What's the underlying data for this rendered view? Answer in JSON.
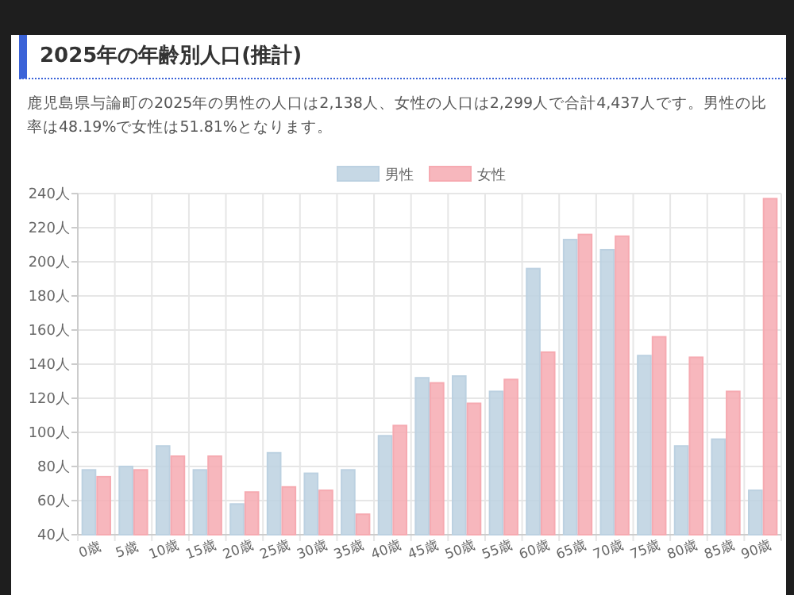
{
  "chart_data": {
    "type": "bar",
    "title": "2025年の年齢別人口(推計)",
    "subtitle": "鹿児島県与論町の2025年の男性の人口は2,138人、女性の人口は2,299人で合計4,437人です。男性の比率は48.19%で女性は51.81%となります。",
    "categories": [
      "0歳",
      "5歳",
      "10歳",
      "15歳",
      "20歳",
      "25歳",
      "30歳",
      "35歳",
      "40歳",
      "45歳",
      "50歳",
      "55歳",
      "60歳",
      "65歳",
      "70歳",
      "75歳",
      "80歳",
      "85歳",
      "90歳"
    ],
    "series": [
      {
        "name": "男性",
        "color": "#bcd1e1",
        "values": [
          78,
          80,
          92,
          78,
          58,
          88,
          76,
          78,
          98,
          132,
          133,
          124,
          196,
          213,
          207,
          145,
          92,
          96,
          66
        ]
      },
      {
        "name": "女性",
        "color": "#f6aab1",
        "values": [
          74,
          78,
          86,
          86,
          65,
          68,
          66,
          52,
          104,
          129,
          117,
          131,
          147,
          216,
          215,
          156,
          144,
          124,
          237
        ]
      }
    ],
    "ylim": [
      40,
      240
    ],
    "yticks": [
      {
        "value": 40,
        "label": "40人"
      },
      {
        "value": 60,
        "label": "60人"
      },
      {
        "value": 80,
        "label": "80人"
      },
      {
        "value": 100,
        "label": "100人"
      },
      {
        "value": 120,
        "label": "120人"
      },
      {
        "value": 140,
        "label": "140人"
      },
      {
        "value": 160,
        "label": "160人"
      },
      {
        "value": 180,
        "label": "180人"
      },
      {
        "value": 200,
        "label": "200人"
      },
      {
        "value": 220,
        "label": "220人"
      },
      {
        "value": 240,
        "label": "240人"
      }
    ],
    "grid": true,
    "legend": "top"
  }
}
